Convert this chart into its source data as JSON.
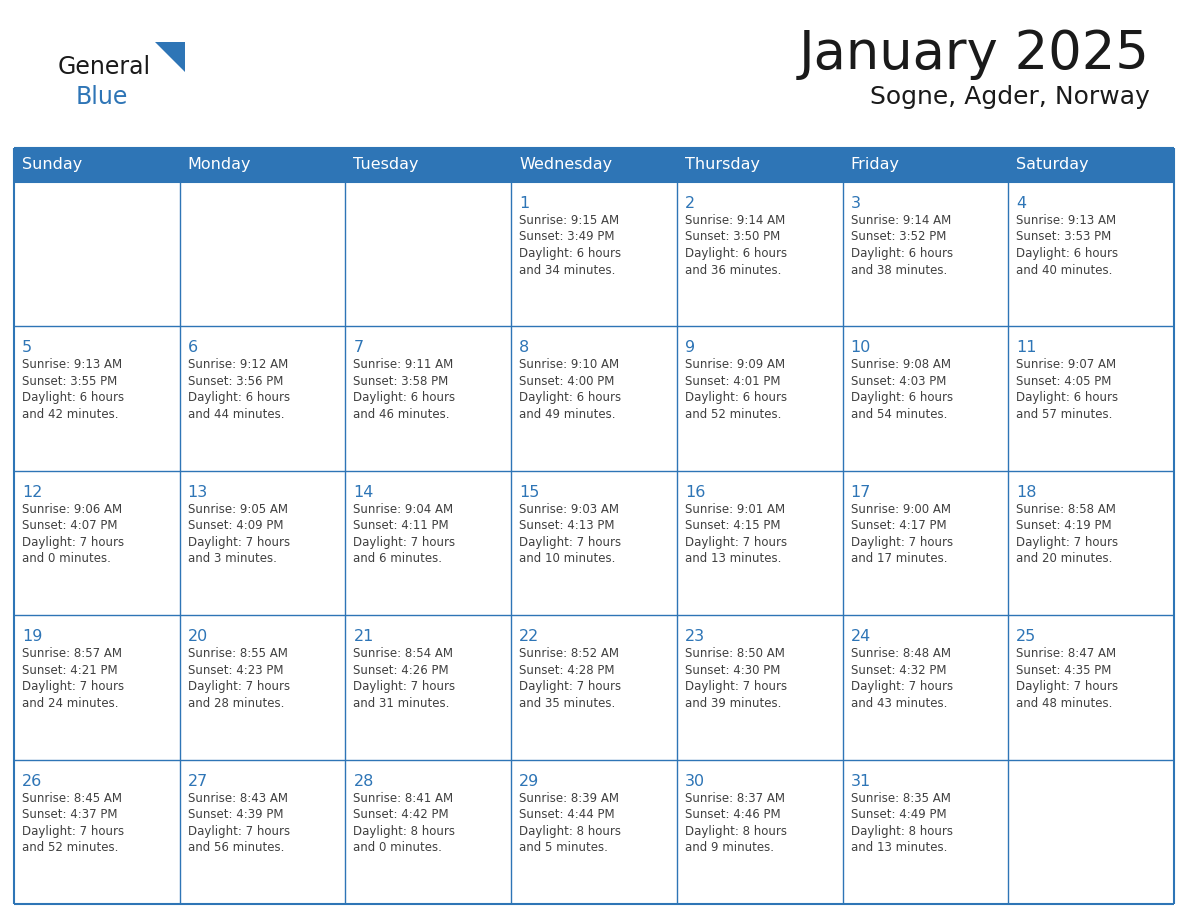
{
  "title": "January 2025",
  "subtitle": "Sogne, Agder, Norway",
  "days_of_week": [
    "Sunday",
    "Monday",
    "Tuesday",
    "Wednesday",
    "Thursday",
    "Friday",
    "Saturday"
  ],
  "header_bg": "#2E75B6",
  "header_text": "#FFFFFF",
  "cell_bg": "#FFFFFF",
  "day_num_color": "#2E75B6",
  "text_color": "#404040",
  "border_color": "#2E75B6",
  "logo_general_color": "#1a1a1a",
  "logo_blue_color": "#2E75B6",
  "title_color": "#1a1a1a",
  "calendar_data": [
    [
      {
        "day": null,
        "info": ""
      },
      {
        "day": null,
        "info": ""
      },
      {
        "day": null,
        "info": ""
      },
      {
        "day": 1,
        "info": "Sunrise: 9:15 AM\nSunset: 3:49 PM\nDaylight: 6 hours\nand 34 minutes."
      },
      {
        "day": 2,
        "info": "Sunrise: 9:14 AM\nSunset: 3:50 PM\nDaylight: 6 hours\nand 36 minutes."
      },
      {
        "day": 3,
        "info": "Sunrise: 9:14 AM\nSunset: 3:52 PM\nDaylight: 6 hours\nand 38 minutes."
      },
      {
        "day": 4,
        "info": "Sunrise: 9:13 AM\nSunset: 3:53 PM\nDaylight: 6 hours\nand 40 minutes."
      }
    ],
    [
      {
        "day": 5,
        "info": "Sunrise: 9:13 AM\nSunset: 3:55 PM\nDaylight: 6 hours\nand 42 minutes."
      },
      {
        "day": 6,
        "info": "Sunrise: 9:12 AM\nSunset: 3:56 PM\nDaylight: 6 hours\nand 44 minutes."
      },
      {
        "day": 7,
        "info": "Sunrise: 9:11 AM\nSunset: 3:58 PM\nDaylight: 6 hours\nand 46 minutes."
      },
      {
        "day": 8,
        "info": "Sunrise: 9:10 AM\nSunset: 4:00 PM\nDaylight: 6 hours\nand 49 minutes."
      },
      {
        "day": 9,
        "info": "Sunrise: 9:09 AM\nSunset: 4:01 PM\nDaylight: 6 hours\nand 52 minutes."
      },
      {
        "day": 10,
        "info": "Sunrise: 9:08 AM\nSunset: 4:03 PM\nDaylight: 6 hours\nand 54 minutes."
      },
      {
        "day": 11,
        "info": "Sunrise: 9:07 AM\nSunset: 4:05 PM\nDaylight: 6 hours\nand 57 minutes."
      }
    ],
    [
      {
        "day": 12,
        "info": "Sunrise: 9:06 AM\nSunset: 4:07 PM\nDaylight: 7 hours\nand 0 minutes."
      },
      {
        "day": 13,
        "info": "Sunrise: 9:05 AM\nSunset: 4:09 PM\nDaylight: 7 hours\nand 3 minutes."
      },
      {
        "day": 14,
        "info": "Sunrise: 9:04 AM\nSunset: 4:11 PM\nDaylight: 7 hours\nand 6 minutes."
      },
      {
        "day": 15,
        "info": "Sunrise: 9:03 AM\nSunset: 4:13 PM\nDaylight: 7 hours\nand 10 minutes."
      },
      {
        "day": 16,
        "info": "Sunrise: 9:01 AM\nSunset: 4:15 PM\nDaylight: 7 hours\nand 13 minutes."
      },
      {
        "day": 17,
        "info": "Sunrise: 9:00 AM\nSunset: 4:17 PM\nDaylight: 7 hours\nand 17 minutes."
      },
      {
        "day": 18,
        "info": "Sunrise: 8:58 AM\nSunset: 4:19 PM\nDaylight: 7 hours\nand 20 minutes."
      }
    ],
    [
      {
        "day": 19,
        "info": "Sunrise: 8:57 AM\nSunset: 4:21 PM\nDaylight: 7 hours\nand 24 minutes."
      },
      {
        "day": 20,
        "info": "Sunrise: 8:55 AM\nSunset: 4:23 PM\nDaylight: 7 hours\nand 28 minutes."
      },
      {
        "day": 21,
        "info": "Sunrise: 8:54 AM\nSunset: 4:26 PM\nDaylight: 7 hours\nand 31 minutes."
      },
      {
        "day": 22,
        "info": "Sunrise: 8:52 AM\nSunset: 4:28 PM\nDaylight: 7 hours\nand 35 minutes."
      },
      {
        "day": 23,
        "info": "Sunrise: 8:50 AM\nSunset: 4:30 PM\nDaylight: 7 hours\nand 39 minutes."
      },
      {
        "day": 24,
        "info": "Sunrise: 8:48 AM\nSunset: 4:32 PM\nDaylight: 7 hours\nand 43 minutes."
      },
      {
        "day": 25,
        "info": "Sunrise: 8:47 AM\nSunset: 4:35 PM\nDaylight: 7 hours\nand 48 minutes."
      }
    ],
    [
      {
        "day": 26,
        "info": "Sunrise: 8:45 AM\nSunset: 4:37 PM\nDaylight: 7 hours\nand 52 minutes."
      },
      {
        "day": 27,
        "info": "Sunrise: 8:43 AM\nSunset: 4:39 PM\nDaylight: 7 hours\nand 56 minutes."
      },
      {
        "day": 28,
        "info": "Sunrise: 8:41 AM\nSunset: 4:42 PM\nDaylight: 8 hours\nand 0 minutes."
      },
      {
        "day": 29,
        "info": "Sunrise: 8:39 AM\nSunset: 4:44 PM\nDaylight: 8 hours\nand 5 minutes."
      },
      {
        "day": 30,
        "info": "Sunrise: 8:37 AM\nSunset: 4:46 PM\nDaylight: 8 hours\nand 9 minutes."
      },
      {
        "day": 31,
        "info": "Sunrise: 8:35 AM\nSunset: 4:49 PM\nDaylight: 8 hours\nand 13 minutes."
      },
      {
        "day": null,
        "info": ""
      }
    ]
  ]
}
